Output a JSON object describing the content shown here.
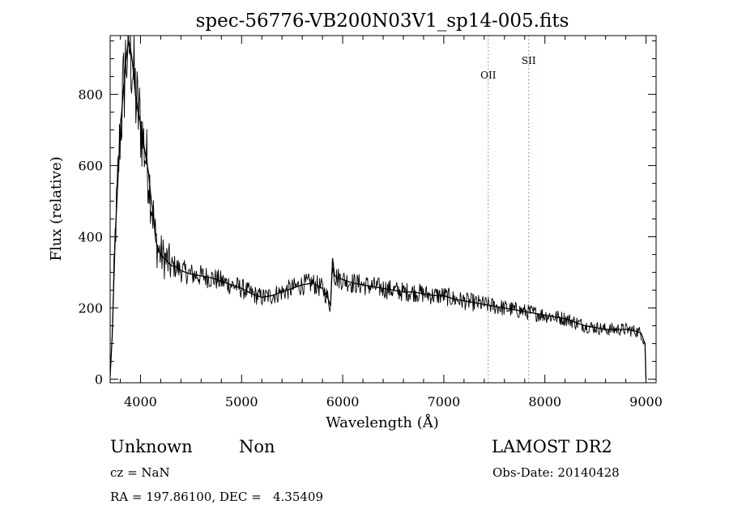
{
  "chart_data": {
    "type": "line",
    "title": "spec-56776-VB200N03V1_sp14-005.fits",
    "xlabel": "Wavelength (Å)",
    "ylabel": "Flux (relative)",
    "xlim": [
      3700,
      9100
    ],
    "ylim": [
      -10,
      965
    ],
    "x_ticks": [
      4000,
      5000,
      6000,
      7000,
      8000,
      9000
    ],
    "x_tick_labels": [
      "4000",
      "5000",
      "6000",
      "7000",
      "8000",
      "9000"
    ],
    "y_ticks": [
      0,
      200,
      400,
      600,
      800
    ],
    "y_tick_labels": [
      "0",
      "200",
      "400",
      "600",
      "800"
    ],
    "grid": false,
    "line_color": "#000000",
    "marker_color": "#c06060",
    "lines": [
      {
        "label": "OII",
        "x": 7440
      },
      {
        "label": "SII",
        "x": 7840
      }
    ],
    "series": [
      {
        "x": [
          3700,
          3720,
          3750,
          3800,
          3850,
          3880,
          3900,
          3920,
          3950,
          3970,
          4000,
          4020,
          4050,
          4080,
          4100,
          4130,
          4150,
          4180,
          4200,
          4250,
          4300,
          4350,
          4400,
          4450,
          4500,
          4600,
          4700,
          4800,
          4900,
          5000,
          5100,
          5200,
          5300,
          5400,
          5500,
          5600,
          5700,
          5800,
          5850,
          5880,
          5900,
          5920,
          5950,
          6000,
          6050,
          6100,
          6200,
          6300,
          6400,
          6500,
          6600,
          6700,
          6800,
          6900,
          7000,
          7100,
          7200,
          7300,
          7400,
          7500,
          7600,
          7700,
          7800,
          7900,
          8000,
          8100,
          8200,
          8300,
          8400,
          8500,
          8600,
          8700,
          8800,
          8900,
          8950,
          8990,
          9000
        ],
        "y": [
          10,
          120,
          400,
          700,
          880,
          950,
          930,
          890,
          800,
          760,
          720,
          680,
          630,
          580,
          520,
          450,
          390,
          360,
          350,
          335,
          320,
          315,
          305,
          300,
          295,
          290,
          285,
          275,
          265,
          255,
          240,
          230,
          235,
          245,
          255,
          265,
          270,
          255,
          230,
          205,
          340,
          290,
          285,
          280,
          275,
          270,
          265,
          260,
          255,
          250,
          245,
          245,
          240,
          235,
          235,
          225,
          220,
          215,
          210,
          205,
          200,
          195,
          190,
          185,
          180,
          175,
          170,
          160,
          150,
          145,
          140,
          140,
          140,
          135,
          130,
          100,
          0
        ]
      }
    ]
  },
  "info": {
    "object_class": "Unknown",
    "object_subclass": "Non",
    "survey": "LAMOST DR2",
    "redshift": "cz = NaN",
    "obs_date": "Obs-Date: 20140428",
    "coords": "RA = 197.86100, DEC =   4.35409"
  }
}
